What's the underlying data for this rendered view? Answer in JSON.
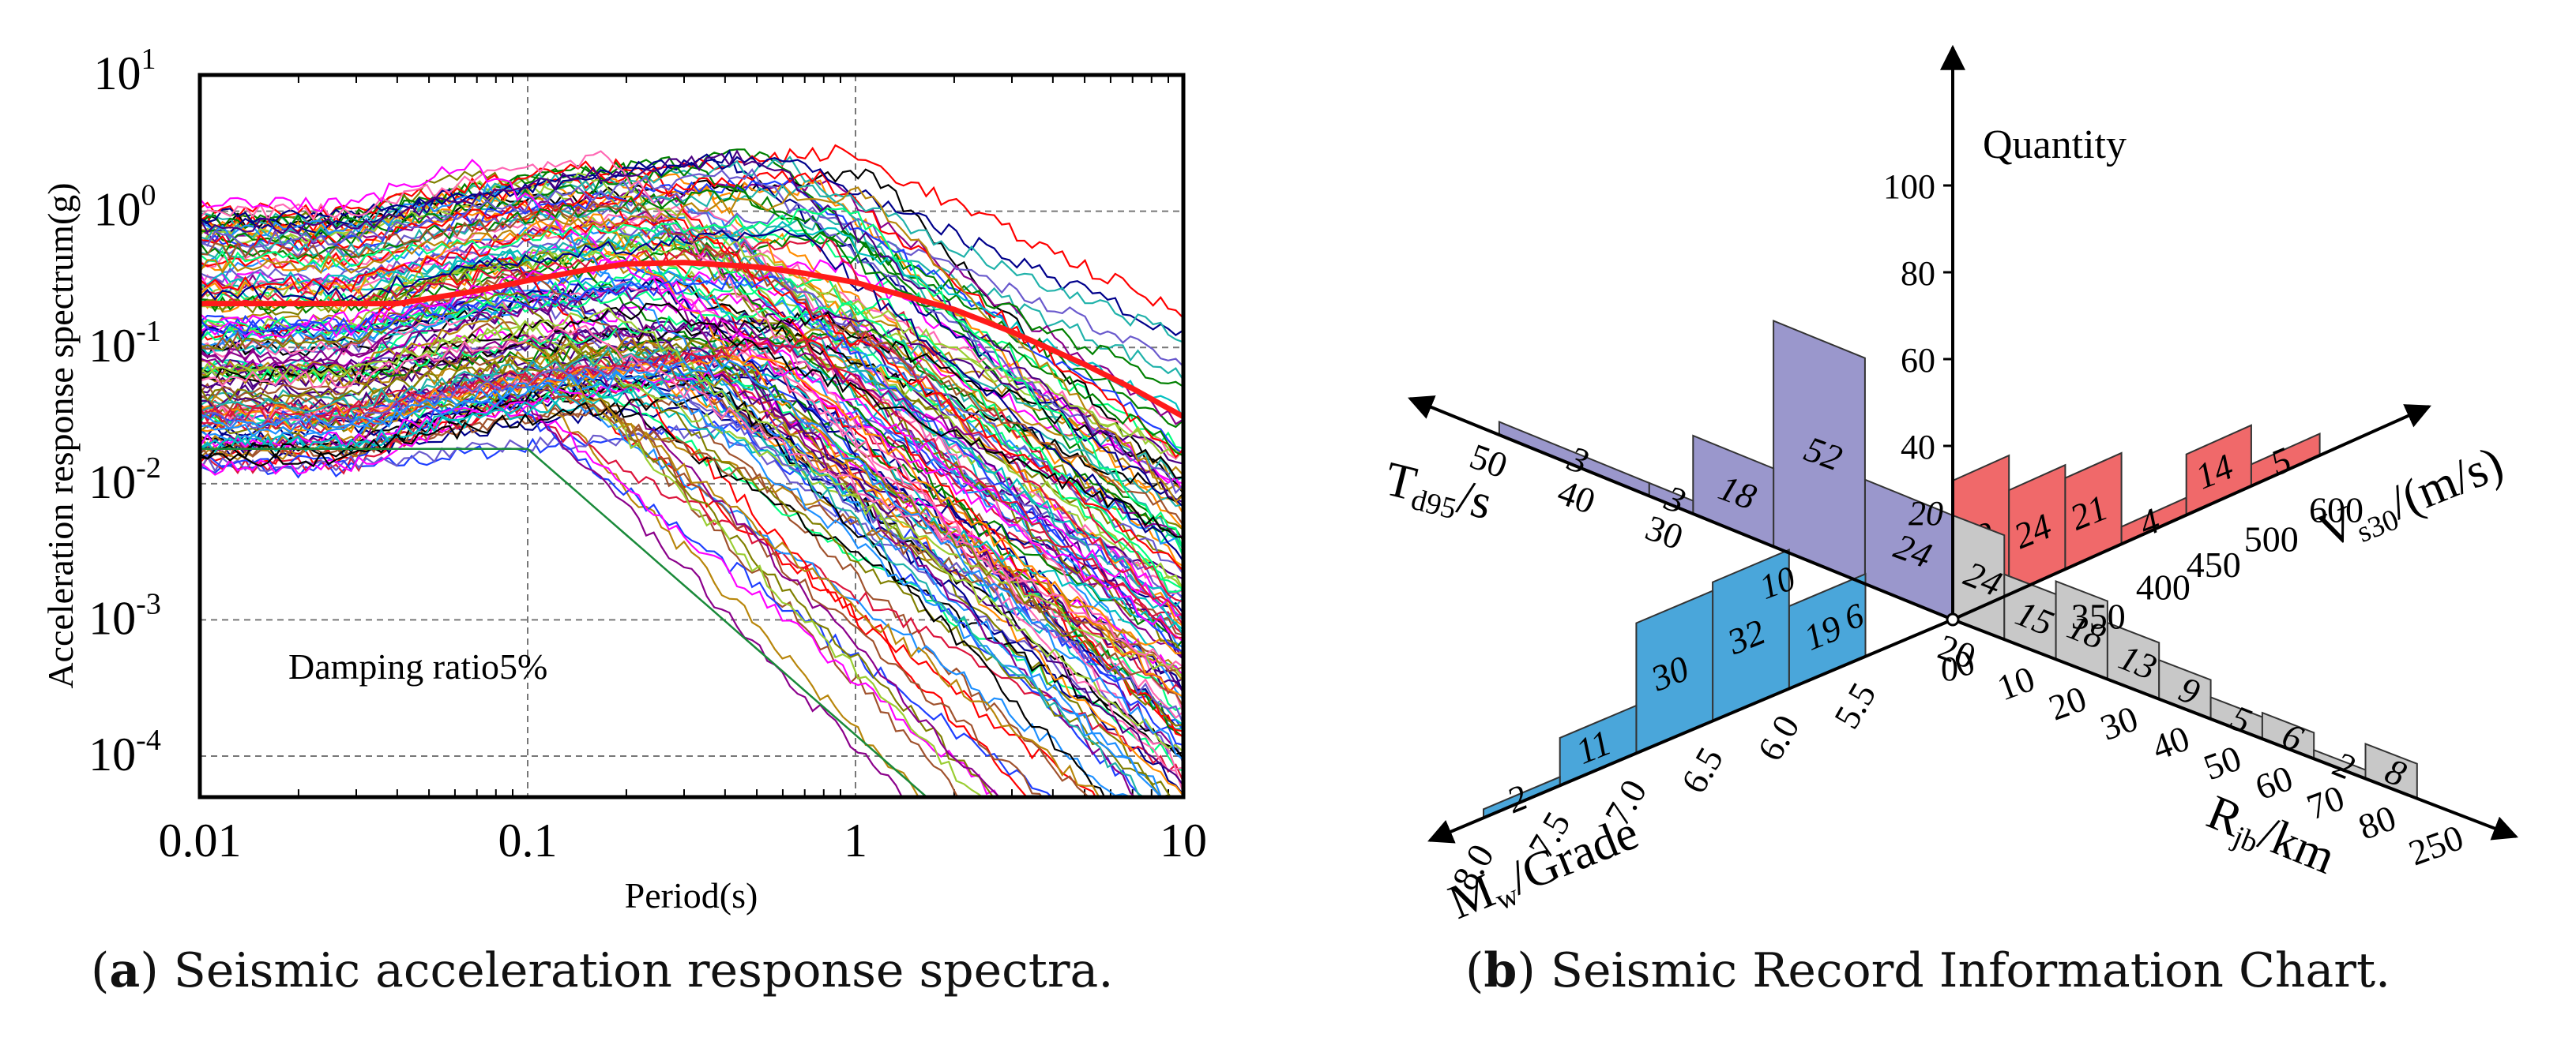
{
  "panel_a": {
    "caption_letter": "a",
    "caption_text": "Seismic acceleration response spectra.",
    "annotation": "Damping ratio5%"
  },
  "panel_b": {
    "caption_letter": "b",
    "caption_text": "Seismic Record Information Chart."
  },
  "colors": {
    "mean_curve": "#ff1a1a",
    "td95_bars": "#9a97cc",
    "vs30_bars": "#f0696a",
    "rjb_bars": "#c8c8c8",
    "mw_bars": "#4aa6da"
  },
  "chart_data": [
    {
      "type": "line",
      "title": "",
      "xlabel": "Period(s)",
      "ylabel": "Acceleration response spectrum(g)",
      "xscale": "log",
      "yscale": "log",
      "xlim": [
        0.01,
        10
      ],
      "ylim": [
        5e-05,
        10
      ],
      "xticks": [
        "0.01",
        "0.1",
        "1",
        "10"
      ],
      "yticks": [
        {
          "base": "10",
          "exp": "1",
          "value": 10
        },
        {
          "base": "10",
          "exp": "0",
          "value": 1
        },
        {
          "base": "10",
          "exp": "-1",
          "value": 0.1
        },
        {
          "base": "10",
          "exp": "-2",
          "value": 0.01
        },
        {
          "base": "10",
          "exp": "-3",
          "value": 0.001
        },
        {
          "base": "10",
          "exp": "-4",
          "value": 0.0001
        }
      ],
      "grid": "dashed",
      "series_count_note": "~140 individual ground-motion spectra plus mean",
      "mean_series": {
        "name": "mean",
        "x": [
          0.01,
          0.02,
          0.04,
          0.07,
          0.1,
          0.15,
          0.2,
          0.3,
          0.5,
          0.7,
          1,
          1.5,
          2,
          3,
          5,
          7,
          10
        ],
        "y": [
          0.21,
          0.21,
          0.21,
          0.26,
          0.31,
          0.37,
          0.41,
          0.42,
          0.39,
          0.35,
          0.3,
          0.23,
          0.19,
          0.13,
          0.075,
          0.05,
          0.031
        ]
      }
    },
    {
      "type": "bar",
      "title": "",
      "vertical_axis": {
        "label": "Quantity",
        "ticks": [
          "40",
          "60",
          "80",
          "100"
        ],
        "range": [
          0,
          110
        ]
      },
      "axes": [
        {
          "name": "Td95",
          "label": "T",
          "label_sub": "d95",
          "label_unit": "/s",
          "tick_labels": [
            "20",
            "30",
            "40",
            "50"
          ],
          "bins": [
            {
              "range": "20-25",
              "value": 24
            },
            {
              "range": "25-30",
              "value": 52
            },
            {
              "range": "30-35",
              "value": 18
            },
            {
              "range": "35-40",
              "value": 3
            },
            {
              "range": "40-50",
              "value": 3
            }
          ]
        },
        {
          "name": "Vs30",
          "label": "V",
          "label_sub": "s30",
          "label_unit": "/(m/s)",
          "tick_labels": [
            "350",
            "400",
            "450",
            "500",
            "600"
          ],
          "bins": [
            {
              "range": "<350",
              "value": 32
            },
            {
              "range": "350-375",
              "value": 24
            },
            {
              "range": "375-400",
              "value": 21
            },
            {
              "range": "400-450",
              "value": 4
            },
            {
              "range": "450-500",
              "value": 14
            },
            {
              "range": "500-600",
              "value": 5
            }
          ]
        },
        {
          "name": "Rjb",
          "label": "R",
          "label_sub": "jb",
          "label_unit": "/km",
          "tick_labels": [
            "0",
            "10",
            "20",
            "30",
            "40",
            "50",
            "60",
            "70",
            "80",
            "250"
          ],
          "bins": [
            {
              "range": "0-10",
              "value": 24
            },
            {
              "range": "10-20",
              "value": 15
            },
            {
              "range": "20-30",
              "value": 18
            },
            {
              "range": "30-40",
              "value": 13
            },
            {
              "range": "40-50",
              "value": 9
            },
            {
              "range": "50-60",
              "value": 5
            },
            {
              "range": "60-70",
              "value": 6
            },
            {
              "range": "70-80",
              "value": 2
            },
            {
              "range": "80-250",
              "value": 8
            }
          ]
        },
        {
          "name": "Mw",
          "label": "M",
          "label_sub": "w",
          "label_unit": "/Grade",
          "tick_labels": [
            "5.5",
            "6.0",
            "6.5",
            "7.0",
            "7.5",
            "8.0"
          ],
          "bins": [
            {
              "range": "5.5-6.0",
              "value": 19
            },
            {
              "range": "6.0-6.5",
              "value": 32
            },
            {
              "range": "6.5-7.0",
              "value": 30
            },
            {
              "range": "7.0-7.5",
              "value": 11
            },
            {
              "range": "7.5-8.0",
              "value": 2
            }
          ]
        }
      ],
      "floating_labels": [
        "20",
        "10",
        "6",
        "0"
      ]
    }
  ]
}
